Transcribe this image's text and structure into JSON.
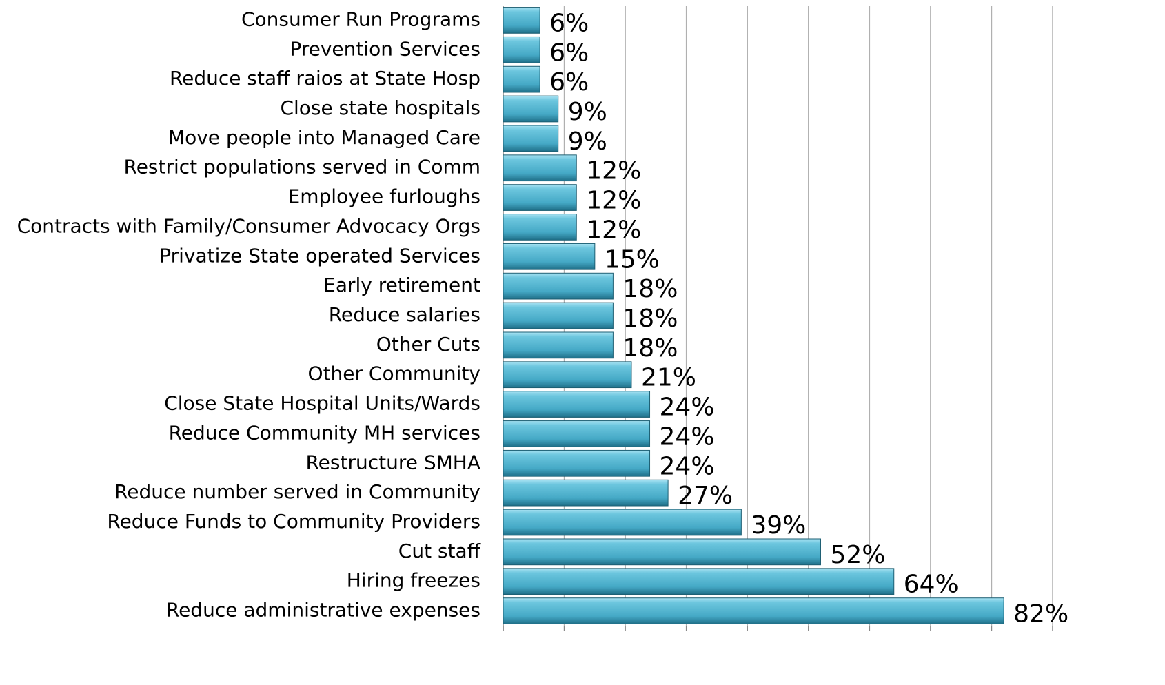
{
  "chart_data": {
    "type": "barh",
    "categories": [
      "Consumer Run Programs",
      "Prevention Services",
      "Reduce staff raios at State Hosp",
      "Close state hospitals",
      "Move people into Managed Care",
      "Restrict populations served in Comm",
      "Employee furloughs",
      "Contracts with Family/Consumer Advocacy Orgs",
      "Privatize State operated Services",
      "Early retirement",
      "Reduce salaries",
      "Other Cuts",
      "Other Community",
      "Close State Hospital Units/Wards",
      "Reduce Community MH services",
      "Restructure SMHA",
      "Reduce number served in Community",
      "Reduce Funds to Community Providers",
      "Cut staff",
      "Hiring freezes",
      "Reduce administrative expenses"
    ],
    "values": [
      6,
      6,
      6,
      9,
      9,
      12,
      12,
      12,
      15,
      18,
      18,
      18,
      21,
      24,
      24,
      24,
      27,
      39,
      52,
      64,
      82
    ],
    "value_labels": [
      "6%",
      "6%",
      "6%",
      "9%",
      "9%",
      "12%",
      "12%",
      "12%",
      "15%",
      "18%",
      "18%",
      "18%",
      "21%",
      "24%",
      "24%",
      "24%",
      "27%",
      "39%",
      "52%",
      "64%",
      "82%"
    ],
    "color": "#4bacc6",
    "xlim": [
      0,
      90
    ],
    "xticks": [
      0,
      10,
      20,
      30,
      40,
      50,
      60,
      70,
      80,
      90
    ],
    "grid": true
  }
}
